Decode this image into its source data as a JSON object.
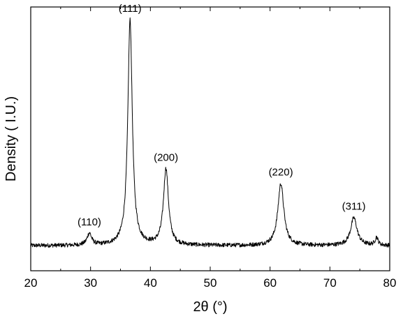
{
  "chart_data": {
    "type": "line",
    "xlabel": "2θ (°)",
    "ylabel": "Density ( I.U.)",
    "xlim": [
      20,
      80
    ],
    "ylim": [
      0,
      100
    ],
    "y_tick_labels": false,
    "grid": false,
    "x_ticks": [
      20,
      30,
      40,
      50,
      60,
      70,
      80
    ],
    "x_tick_labels": [
      "20",
      "30",
      "40",
      "50",
      "60",
      "70",
      "80"
    ],
    "baseline": 9.5,
    "peaks": [
      {
        "label": "(110)",
        "x": 29.8,
        "y": 14.0,
        "width": 0.45
      },
      {
        "label": "(111)",
        "x": 36.6,
        "y": 95.0,
        "width": 0.45
      },
      {
        "label": "(200)",
        "x": 42.6,
        "y": 38.5,
        "width": 0.5
      },
      {
        "label": "(220)",
        "x": 61.8,
        "y": 33.0,
        "width": 0.6
      },
      {
        "label": "(311)",
        "x": 74.0,
        "y": 20.0,
        "width": 0.65
      }
    ],
    "minor_peaks": [
      {
        "x": 77.8,
        "y": 12.5,
        "width": 0.3
      }
    ],
    "noise": 0.8
  }
}
